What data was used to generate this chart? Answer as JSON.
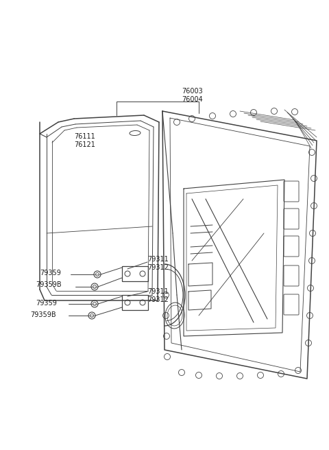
{
  "bg_color": "#ffffff",
  "line_color": "#404040",
  "text_color": "#1a1a1a",
  "fig_w": 4.8,
  "fig_h": 6.56,
  "dpi": 100,
  "font_size": 6.5,
  "font_size_label": 6.5
}
